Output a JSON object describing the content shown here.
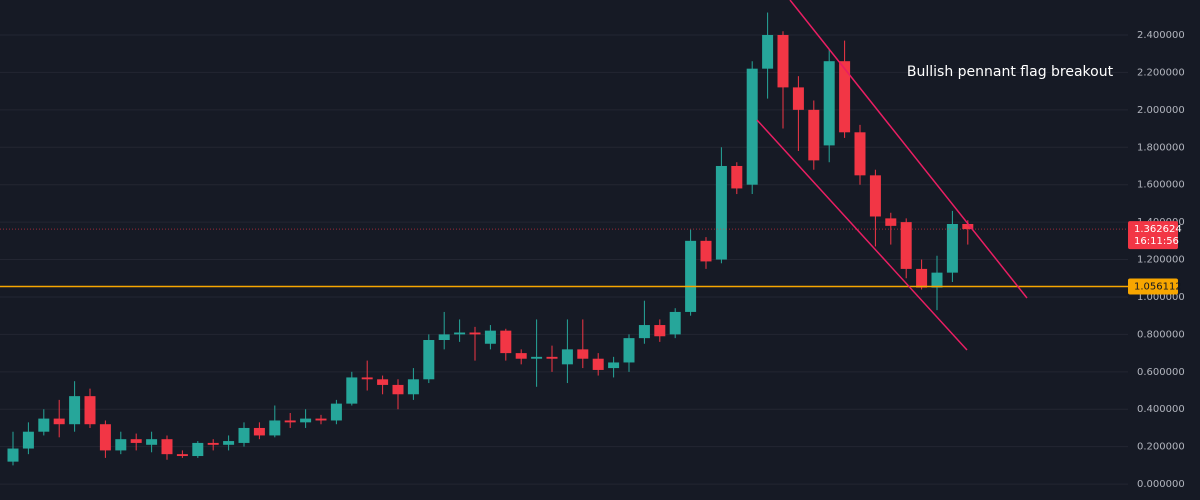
{
  "chart_data": {
    "type": "candlestick",
    "annotation": "Bullish pennant flag breakout",
    "up_color": "#26a69a",
    "down_color": "#f23645",
    "grid": true,
    "ylim": [
      -0.085,
      2.587
    ],
    "yticks": [
      {
        "value": 0,
        "label": "0.000000"
      },
      {
        "value": 0.2,
        "label": "0.200000"
      },
      {
        "value": 0.4,
        "label": "0.400000"
      },
      {
        "value": 0.6,
        "label": "0.600000"
      },
      {
        "value": 0.8,
        "label": "0.800000"
      },
      {
        "value": 1.0,
        "label": "1.000000"
      },
      {
        "value": 1.2,
        "label": "1.200000"
      },
      {
        "value": 1.4,
        "label": "1.400000"
      },
      {
        "value": 1.6,
        "label": "1.600000"
      },
      {
        "value": 1.8,
        "label": "1.800000"
      },
      {
        "value": 2.0,
        "label": "2.000000"
      },
      {
        "value": 2.2,
        "label": "2.200000"
      },
      {
        "value": 2.4,
        "label": "2.400000"
      }
    ],
    "last_price": 1.362624,
    "countdown": "16:11:56",
    "horizontal_line": {
      "value": 1.056112,
      "color": "#f7a600"
    },
    "open": [
      0.12,
      0.19,
      0.28,
      0.35,
      0.32,
      0.47,
      0.32,
      0.18,
      0.24,
      0.21,
      0.24,
      0.16,
      0.15,
      0.22,
      0.21,
      0.22,
      0.3,
      0.26,
      0.34,
      0.33,
      0.35,
      0.34,
      0.43,
      0.57,
      0.56,
      0.53,
      0.48,
      0.56,
      0.77,
      0.8,
      0.81,
      0.75,
      0.82,
      0.7,
      0.67,
      0.68,
      0.64,
      0.72,
      0.67,
      0.62,
      0.65,
      0.78,
      0.85,
      0.8,
      0.92,
      1.3,
      1.2,
      1.7,
      1.6,
      2.22,
      2.4,
      2.12,
      2.0,
      1.81,
      2.26,
      1.88,
      1.65,
      1.42,
      1.4,
      1.15,
      1.05,
      1.13,
      1.39
    ],
    "high": [
      0.28,
      0.33,
      0.4,
      0.45,
      0.55,
      0.51,
      0.34,
      0.28,
      0.27,
      0.28,
      0.26,
      0.18,
      0.23,
      0.24,
      0.26,
      0.33,
      0.33,
      0.42,
      0.38,
      0.4,
      0.37,
      0.45,
      0.6,
      0.66,
      0.58,
      0.56,
      0.62,
      0.8,
      0.92,
      0.88,
      0.84,
      0.85,
      0.83,
      0.72,
      0.88,
      0.74,
      0.88,
      0.88,
      0.7,
      0.68,
      0.8,
      0.98,
      0.88,
      0.94,
      1.36,
      1.32,
      1.8,
      1.72,
      2.26,
      2.52,
      2.42,
      2.18,
      2.05,
      2.32,
      2.37,
      1.92,
      1.68,
      1.45,
      1.42,
      1.2,
      1.22,
      1.46,
      1.41
    ],
    "low": [
      0.1,
      0.16,
      0.26,
      0.25,
      0.28,
      0.3,
      0.14,
      0.16,
      0.18,
      0.17,
      0.13,
      0.14,
      0.14,
      0.18,
      0.18,
      0.2,
      0.24,
      0.25,
      0.3,
      0.3,
      0.32,
      0.32,
      0.42,
      0.5,
      0.48,
      0.4,
      0.45,
      0.54,
      0.72,
      0.76,
      0.66,
      0.72,
      0.66,
      0.64,
      0.52,
      0.6,
      0.54,
      0.62,
      0.58,
      0.57,
      0.6,
      0.75,
      0.76,
      0.78,
      0.9,
      1.15,
      1.18,
      1.55,
      1.55,
      2.06,
      1.9,
      1.78,
      1.68,
      1.72,
      1.85,
      1.6,
      1.27,
      1.28,
      1.1,
      1.04,
      0.93,
      1.08,
      1.28
    ],
    "close": [
      0.19,
      0.28,
      0.35,
      0.32,
      0.47,
      0.32,
      0.18,
      0.24,
      0.22,
      0.24,
      0.16,
      0.15,
      0.22,
      0.21,
      0.23,
      0.3,
      0.26,
      0.34,
      0.33,
      0.35,
      0.34,
      0.43,
      0.57,
      0.56,
      0.53,
      0.48,
      0.56,
      0.77,
      0.8,
      0.81,
      0.8,
      0.82,
      0.7,
      0.67,
      0.68,
      0.67,
      0.72,
      0.67,
      0.61,
      0.65,
      0.78,
      0.85,
      0.79,
      0.92,
      1.3,
      1.19,
      1.7,
      1.58,
      2.22,
      2.4,
      2.12,
      2.0,
      1.73,
      2.26,
      1.88,
      1.65,
      1.43,
      1.38,
      1.15,
      1.05,
      1.13,
      1.39,
      1.362624
    ]
  }
}
